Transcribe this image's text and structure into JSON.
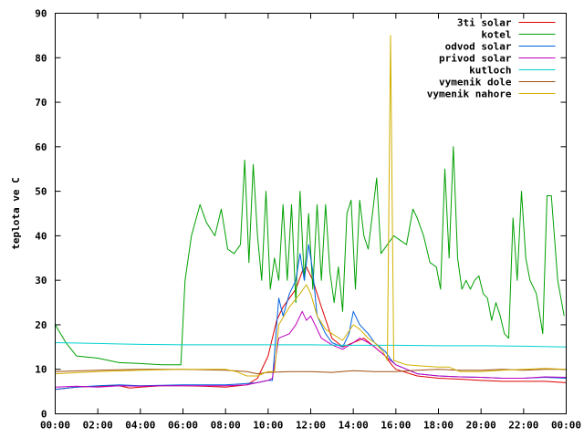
{
  "chart_data": {
    "type": "line",
    "title": "",
    "xlabel": "",
    "ylabel": "teplota ve C",
    "xlim": [
      0,
      24
    ],
    "ylim": [
      0,
      90
    ],
    "grid": false,
    "legend_position": "top-right",
    "x_tick_labels": [
      "00:00",
      "02:00",
      "04:00",
      "06:00",
      "08:00",
      "10:00",
      "12:00",
      "14:00",
      "16:00",
      "18:00",
      "20:00",
      "22:00",
      "00:00"
    ],
    "y_tick_labels": [
      "0",
      "10",
      "20",
      "30",
      "40",
      "50",
      "60",
      "70",
      "80",
      "90"
    ],
    "series": [
      {
        "name": "3ti solar",
        "color": "#e00000",
        "points": [
          [
            0,
            5.5
          ],
          [
            1,
            6
          ],
          [
            2,
            6.2
          ],
          [
            3,
            6.3
          ],
          [
            3.5,
            5.8
          ],
          [
            4,
            6
          ],
          [
            5,
            6.3
          ],
          [
            6,
            6.3
          ],
          [
            7,
            6.2
          ],
          [
            8,
            6
          ],
          [
            9,
            6.5
          ],
          [
            9.5,
            8
          ],
          [
            10,
            13
          ],
          [
            10.4,
            21
          ],
          [
            10.7,
            24
          ],
          [
            11,
            26
          ],
          [
            11.3,
            28
          ],
          [
            11.6,
            32
          ],
          [
            11.8,
            33
          ],
          [
            12.1,
            30
          ],
          [
            12.5,
            24
          ],
          [
            13,
            17
          ],
          [
            13.5,
            15
          ],
          [
            14,
            16
          ],
          [
            14.5,
            17
          ],
          [
            15,
            15
          ],
          [
            15.5,
            13
          ],
          [
            15.8,
            11
          ],
          [
            16,
            10
          ],
          [
            17,
            8.5
          ],
          [
            18,
            8
          ],
          [
            19,
            7.8
          ],
          [
            20,
            7.5
          ],
          [
            21,
            7.3
          ],
          [
            22,
            7.3
          ],
          [
            23,
            7.3
          ],
          [
            24,
            7
          ]
        ]
      },
      {
        "name": "kotel",
        "color": "#00a000",
        "points": [
          [
            0,
            20
          ],
          [
            0.5,
            16
          ],
          [
            1,
            13
          ],
          [
            2,
            12.5
          ],
          [
            3,
            11.5
          ],
          [
            4,
            11.3
          ],
          [
            5,
            11
          ],
          [
            5.9,
            11
          ],
          [
            6.1,
            30
          ],
          [
            6.4,
            40
          ],
          [
            6.8,
            47
          ],
          [
            7.1,
            43
          ],
          [
            7.5,
            40
          ],
          [
            7.8,
            46
          ],
          [
            8.1,
            37
          ],
          [
            8.4,
            36
          ],
          [
            8.7,
            38
          ],
          [
            8.9,
            57
          ],
          [
            9.1,
            34
          ],
          [
            9.3,
            56
          ],
          [
            9.5,
            40
          ],
          [
            9.7,
            30
          ],
          [
            9.9,
            50
          ],
          [
            10.1,
            28
          ],
          [
            10.3,
            35
          ],
          [
            10.5,
            30
          ],
          [
            10.7,
            47
          ],
          [
            10.9,
            30
          ],
          [
            11.1,
            47
          ],
          [
            11.3,
            25
          ],
          [
            11.5,
            50
          ],
          [
            11.7,
            30
          ],
          [
            11.9,
            45
          ],
          [
            12.1,
            28
          ],
          [
            12.3,
            47
          ],
          [
            12.5,
            30
          ],
          [
            12.7,
            47
          ],
          [
            12.9,
            32
          ],
          [
            13.1,
            25
          ],
          [
            13.3,
            33
          ],
          [
            13.5,
            23
          ],
          [
            13.7,
            45
          ],
          [
            13.9,
            48
          ],
          [
            14.1,
            28
          ],
          [
            14.3,
            48
          ],
          [
            14.5,
            40
          ],
          [
            14.7,
            37
          ],
          [
            14.9,
            45
          ],
          [
            15.1,
            53
          ],
          [
            15.3,
            36
          ],
          [
            15.6,
            38
          ],
          [
            15.9,
            40
          ],
          [
            16.2,
            39
          ],
          [
            16.5,
            38
          ],
          [
            16.8,
            46
          ],
          [
            17,
            44
          ],
          [
            17.3,
            40
          ],
          [
            17.6,
            34
          ],
          [
            17.9,
            33
          ],
          [
            18.1,
            28
          ],
          [
            18.3,
            55
          ],
          [
            18.5,
            35
          ],
          [
            18.7,
            60
          ],
          [
            18.9,
            35
          ],
          [
            19.1,
            28
          ],
          [
            19.3,
            30
          ],
          [
            19.5,
            28
          ],
          [
            19.7,
            30
          ],
          [
            19.9,
            31
          ],
          [
            20.1,
            27
          ],
          [
            20.3,
            26
          ],
          [
            20.5,
            21
          ],
          [
            20.7,
            25
          ],
          [
            20.9,
            22
          ],
          [
            21.1,
            18
          ],
          [
            21.3,
            17
          ],
          [
            21.5,
            44
          ],
          [
            21.7,
            30
          ],
          [
            21.9,
            50
          ],
          [
            22.1,
            35
          ],
          [
            22.3,
            30
          ],
          [
            22.6,
            27
          ],
          [
            22.9,
            18
          ],
          [
            23.1,
            49
          ],
          [
            23.3,
            49
          ],
          [
            23.6,
            30
          ],
          [
            23.9,
            22
          ]
        ]
      },
      {
        "name": "odvod solar",
        "color": "#0060e0",
        "points": [
          [
            0,
            5.5
          ],
          [
            1,
            6
          ],
          [
            2,
            6.3
          ],
          [
            3,
            6.5
          ],
          [
            4,
            6.3
          ],
          [
            5,
            6.4
          ],
          [
            6,
            6.5
          ],
          [
            7,
            6.5
          ],
          [
            8,
            6.5
          ],
          [
            9,
            6.8
          ],
          [
            9.5,
            7
          ],
          [
            10,
            7.5
          ],
          [
            10.2,
            7.5
          ],
          [
            10.5,
            26
          ],
          [
            10.7,
            22
          ],
          [
            11,
            27
          ],
          [
            11.3,
            30
          ],
          [
            11.5,
            36
          ],
          [
            11.7,
            30
          ],
          [
            11.9,
            38
          ],
          [
            12.1,
            32
          ],
          [
            12.3,
            22
          ],
          [
            12.7,
            18
          ],
          [
            13,
            16
          ],
          [
            13.5,
            15
          ],
          [
            13.8,
            18
          ],
          [
            14,
            23
          ],
          [
            14.3,
            20
          ],
          [
            14.7,
            18
          ],
          [
            15,
            16
          ],
          [
            15.5,
            14
          ],
          [
            15.8,
            12
          ],
          [
            16,
            11
          ],
          [
            17,
            9
          ],
          [
            18,
            8.5
          ],
          [
            19,
            8.3
          ],
          [
            20,
            8.2
          ],
          [
            21,
            8
          ],
          [
            22,
            8
          ],
          [
            23,
            8.2
          ],
          [
            24,
            8
          ]
        ]
      },
      {
        "name": "privod solar",
        "color": "#c000c0",
        "points": [
          [
            0,
            6
          ],
          [
            1,
            6.2
          ],
          [
            2,
            6
          ],
          [
            3,
            6.3
          ],
          [
            4,
            6.2
          ],
          [
            5,
            6.3
          ],
          [
            6,
            6.3
          ],
          [
            7,
            6.3
          ],
          [
            8,
            6.3
          ],
          [
            9,
            6.5
          ],
          [
            10,
            7.5
          ],
          [
            10.2,
            8
          ],
          [
            10.5,
            17
          ],
          [
            11,
            18
          ],
          [
            11.3,
            20
          ],
          [
            11.6,
            23
          ],
          [
            11.8,
            21
          ],
          [
            12,
            22
          ],
          [
            12.2,
            20
          ],
          [
            12.5,
            17
          ],
          [
            13,
            15.5
          ],
          [
            13.5,
            14.5
          ],
          [
            14,
            16
          ],
          [
            14.3,
            17
          ],
          [
            14.7,
            16
          ],
          [
            15,
            15
          ],
          [
            15.5,
            13
          ],
          [
            16,
            11
          ],
          [
            16.5,
            10
          ],
          [
            17,
            9
          ],
          [
            18,
            8.5
          ],
          [
            19,
            8.3
          ],
          [
            20,
            8.2
          ],
          [
            21,
            8
          ],
          [
            22,
            8
          ],
          [
            23,
            8.3
          ],
          [
            24,
            8.2
          ]
        ]
      },
      {
        "name": "kutloch",
        "color": "#00d0d0",
        "points": [
          [
            0,
            16
          ],
          [
            2,
            15.8
          ],
          [
            4,
            15.6
          ],
          [
            6,
            15.5
          ],
          [
            8,
            15.5
          ],
          [
            10,
            15.5
          ],
          [
            12,
            15.5
          ],
          [
            14,
            15.4
          ],
          [
            16,
            15.4
          ],
          [
            18,
            15.3
          ],
          [
            20,
            15.3
          ],
          [
            22,
            15.2
          ],
          [
            24,
            15
          ]
        ]
      },
      {
        "name": "vymenik dole",
        "color": "#a05010",
        "points": [
          [
            0,
            9.5
          ],
          [
            2,
            9.8
          ],
          [
            4,
            10
          ],
          [
            6,
            10
          ],
          [
            8,
            9.8
          ],
          [
            9,
            9.5
          ],
          [
            9.5,
            9
          ],
          [
            10,
            9.3
          ],
          [
            11,
            9.5
          ],
          [
            12,
            9.5
          ],
          [
            13,
            9.3
          ],
          [
            14,
            9.7
          ],
          [
            15,
            9.5
          ],
          [
            16,
            9.5
          ],
          [
            17,
            9.8
          ],
          [
            18,
            10
          ],
          [
            19,
            9.8
          ],
          [
            20,
            9.8
          ],
          [
            21,
            10
          ],
          [
            22,
            9.8
          ],
          [
            23,
            10
          ],
          [
            24,
            10
          ]
        ]
      },
      {
        "name": "vymenik nahore",
        "color": "#d0b000",
        "points": [
          [
            0,
            9
          ],
          [
            2,
            9.5
          ],
          [
            4,
            9.8
          ],
          [
            6,
            10
          ],
          [
            8,
            10
          ],
          [
            8.5,
            9.5
          ],
          [
            9,
            8.5
          ],
          [
            9.5,
            8.5
          ],
          [
            10,
            9.5
          ],
          [
            10.3,
            9.5
          ],
          [
            10.5,
            20
          ],
          [
            11,
            24
          ],
          [
            11.5,
            27
          ],
          [
            11.8,
            29
          ],
          [
            12,
            27
          ],
          [
            12.3,
            22
          ],
          [
            12.7,
            19
          ],
          [
            13,
            18
          ],
          [
            13.5,
            16.5
          ],
          [
            14,
            20
          ],
          [
            14.3,
            19
          ],
          [
            14.7,
            17
          ],
          [
            15,
            16
          ],
          [
            15.4,
            14
          ],
          [
            15.6,
            12
          ],
          [
            15.75,
            85
          ],
          [
            15.9,
            12
          ],
          [
            16.2,
            11.5
          ],
          [
            16.5,
            11
          ],
          [
            17,
            10.8
          ],
          [
            18,
            10.5
          ],
          [
            18.5,
            10.5
          ],
          [
            19,
            9.5
          ],
          [
            20,
            9.5
          ],
          [
            21,
            9.8
          ],
          [
            22,
            10
          ],
          [
            23,
            10.2
          ],
          [
            24,
            10
          ]
        ]
      }
    ]
  }
}
